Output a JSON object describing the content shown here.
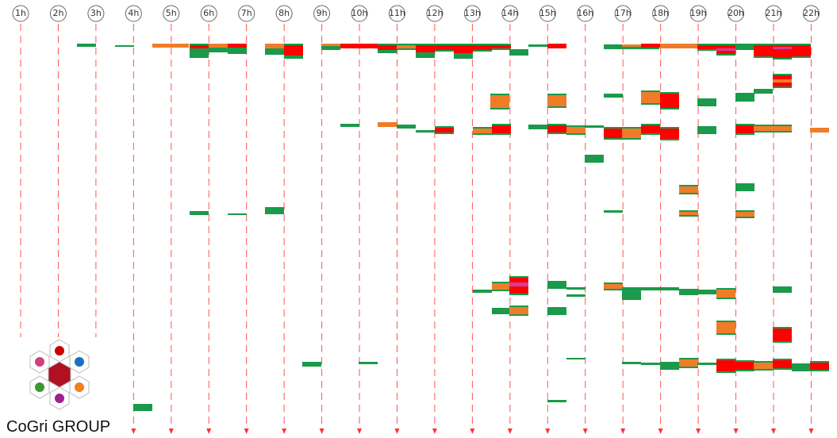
{
  "hours": [
    "1h",
    "2h",
    "3h",
    "4h",
    "5h",
    "6h",
    "7h",
    "8h",
    "9h",
    "10h",
    "11h",
    "12h",
    "13h",
    "14h",
    "15h",
    "16h",
    "17h",
    "18h",
    "19h",
    "20h",
    "21h",
    "22h"
  ],
  "logo": {
    "name": "CoGri GROUP"
  }
}
